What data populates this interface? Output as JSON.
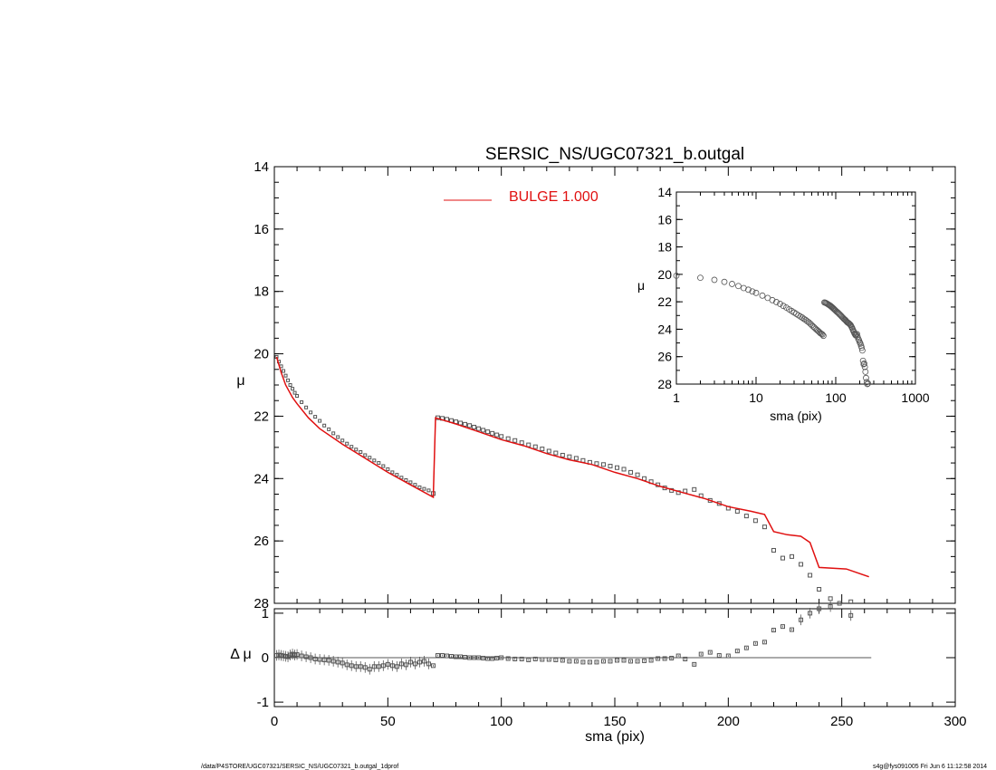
{
  "chart_data": [
    {
      "panel": "main",
      "type": "scatter",
      "title": "SERSIC_NS/UGC07321_b.outgal",
      "xlabel": "",
      "ylabel": "μ",
      "xlim": [
        0,
        300
      ],
      "ylim": [
        28,
        14
      ],
      "yticks": [
        "14",
        "16",
        "18",
        "20",
        "22",
        "24",
        "26",
        "28"
      ],
      "legend": {
        "placement": "top-center",
        "entries": [
          {
            "label": "BULGE  1.000",
            "color": "#e01010"
          }
        ]
      },
      "series": [
        {
          "kind": "data-points",
          "marker": "square",
          "color": "#555555",
          "x": [
            1,
            2,
            3,
            4,
            5,
            6,
            7,
            8,
            9,
            10,
            12,
            14,
            16,
            18,
            20,
            22,
            24,
            26,
            28,
            30,
            32,
            34,
            36,
            38,
            40,
            42,
            44,
            46,
            48,
            50,
            52,
            54,
            56,
            58,
            60,
            62,
            64,
            66,
            68,
            70,
            72,
            74,
            76,
            78,
            80,
            82,
            84,
            86,
            88,
            90,
            92,
            94,
            96,
            98,
            100,
            103,
            106,
            109,
            112,
            115,
            118,
            121,
            124,
            127,
            130,
            133,
            136,
            139,
            142,
            145,
            148,
            151,
            154,
            157,
            160,
            163,
            166,
            169,
            172,
            175,
            178,
            181,
            185,
            188,
            192,
            196,
            200,
            204,
            208,
            212,
            216,
            220,
            224,
            228,
            232,
            236,
            240,
            245,
            249,
            254
          ],
          "y": [
            20.1,
            20.25,
            20.4,
            20.55,
            20.7,
            20.85,
            21.0,
            21.12,
            21.25,
            21.35,
            21.55,
            21.72,
            21.88,
            22.02,
            22.15,
            22.3,
            22.42,
            22.55,
            22.67,
            22.78,
            22.88,
            22.98,
            23.07,
            23.15,
            23.25,
            23.33,
            23.42,
            23.5,
            23.6,
            23.7,
            23.8,
            23.88,
            23.97,
            24.05,
            24.12,
            24.2,
            24.28,
            24.33,
            24.38,
            24.48,
            22.05,
            22.07,
            22.1,
            22.14,
            22.18,
            22.22,
            22.26,
            22.3,
            22.35,
            22.4,
            22.45,
            22.5,
            22.55,
            22.6,
            22.65,
            22.72,
            22.78,
            22.85,
            22.92,
            22.98,
            23.05,
            23.12,
            23.18,
            23.25,
            23.3,
            23.35,
            23.42,
            23.48,
            23.52,
            23.55,
            23.6,
            23.65,
            23.7,
            23.8,
            23.88,
            24.0,
            24.1,
            24.2,
            24.3,
            24.38,
            24.45,
            24.4,
            24.35,
            24.55,
            24.7,
            24.8,
            24.95,
            25.05,
            25.2,
            25.35,
            25.55,
            26.3,
            26.55,
            26.5,
            26.75,
            27.1,
            27.55,
            27.85,
            28.0,
            27.95
          ]
        },
        {
          "kind": "model",
          "name": "BULGE  1.000",
          "color": "#e01010",
          "x": [
            1,
            3,
            5,
            8,
            10,
            15,
            20,
            30,
            40,
            50,
            60,
            70,
            71,
            80,
            90,
            100,
            110,
            120,
            130,
            140,
            150,
            160,
            170,
            180,
            190,
            200,
            210,
            216,
            220,
            226,
            232,
            236,
            240,
            252,
            262
          ],
          "y": [
            20.1,
            20.6,
            21.0,
            21.4,
            21.6,
            22.05,
            22.4,
            22.9,
            23.35,
            23.8,
            24.2,
            24.6,
            22.05,
            22.25,
            22.5,
            22.75,
            22.95,
            23.2,
            23.4,
            23.55,
            23.8,
            24.0,
            24.25,
            24.45,
            24.65,
            24.9,
            25.05,
            25.15,
            25.7,
            25.8,
            25.85,
            26.05,
            26.85,
            26.9,
            27.15
          ]
        }
      ]
    },
    {
      "panel": "residual",
      "type": "scatter",
      "xlabel": "sma (pix)",
      "ylabel": "Δ μ",
      "xlim": [
        0,
        300
      ],
      "ylim": [
        -1.1,
        1.1
      ],
      "xticks": [
        "0",
        "50",
        "100",
        "150",
        "200",
        "250",
        "300"
      ],
      "yticks": [
        "1",
        "0",
        "-1"
      ],
      "zero_line": {
        "from": 0,
        "to": 263
      },
      "series": [
        {
          "kind": "residuals",
          "marker": "square",
          "color": "#555555",
          "x": [
            1,
            2,
            3,
            4,
            5,
            6,
            7,
            8,
            9,
            10,
            12,
            14,
            16,
            18,
            20,
            22,
            24,
            26,
            28,
            30,
            32,
            34,
            36,
            38,
            40,
            42,
            44,
            46,
            48,
            50,
            52,
            54,
            56,
            58,
            60,
            62,
            64,
            66,
            68,
            70,
            72,
            74,
            76,
            78,
            80,
            82,
            84,
            86,
            88,
            90,
            92,
            94,
            96,
            98,
            100,
            103,
            106,
            109,
            112,
            115,
            118,
            121,
            124,
            127,
            130,
            133,
            136,
            139,
            142,
            145,
            148,
            151,
            154,
            157,
            160,
            163,
            166,
            169,
            172,
            175,
            178,
            181,
            185,
            188,
            192,
            196,
            200,
            204,
            208,
            212,
            216,
            220,
            224,
            228,
            232,
            236,
            240,
            245,
            249,
            254
          ],
          "y": [
            0.05,
            0.06,
            0.05,
            0.04,
            0.03,
            0.02,
            0.06,
            0.08,
            0.06,
            0.07,
            0.04,
            0.02,
            0.0,
            -0.03,
            -0.04,
            -0.05,
            -0.06,
            -0.08,
            -0.1,
            -0.12,
            -0.16,
            -0.18,
            -0.2,
            -0.2,
            -0.22,
            -0.26,
            -0.2,
            -0.2,
            -0.18,
            -0.15,
            -0.18,
            -0.2,
            -0.14,
            -0.16,
            -0.1,
            -0.14,
            -0.1,
            -0.08,
            -0.14,
            -0.18,
            0.05,
            0.05,
            0.04,
            0.03,
            0.02,
            0.02,
            0.01,
            0.0,
            0.0,
            0.0,
            -0.01,
            -0.02,
            -0.02,
            -0.01,
            0.0,
            -0.02,
            -0.03,
            -0.03,
            -0.05,
            -0.03,
            -0.04,
            -0.04,
            -0.05,
            -0.06,
            -0.08,
            -0.08,
            -0.1,
            -0.1,
            -0.1,
            -0.08,
            -0.08,
            -0.06,
            -0.06,
            -0.08,
            -0.08,
            -0.07,
            -0.06,
            -0.02,
            -0.02,
            -0.01,
            0.04,
            -0.03,
            -0.15,
            0.08,
            0.12,
            0.05,
            0.04,
            0.15,
            0.22,
            0.32,
            0.35,
            0.62,
            0.7,
            0.63,
            0.85,
            1.0,
            1.1,
            1.15,
            1.2,
            0.95
          ]
        }
      ]
    },
    {
      "panel": "inset",
      "type": "scatter",
      "xscale": "log",
      "xlabel": "sma (pix)",
      "ylabel": "μ",
      "xlim": [
        1,
        1000
      ],
      "ylim": [
        28,
        14
      ],
      "xticks": [
        "1",
        "10",
        "100",
        "1000"
      ],
      "yticks": [
        "14",
        "16",
        "18",
        "20",
        "22",
        "24",
        "26",
        "28"
      ]
    }
  ],
  "footer": {
    "left": "/data/P4STORE/UGC07321/SERSIC_NS/UGC07321_b.outgal_1dprof",
    "right": "s4g@fys091005  Fri Jun  6 11:12:58 2014"
  }
}
